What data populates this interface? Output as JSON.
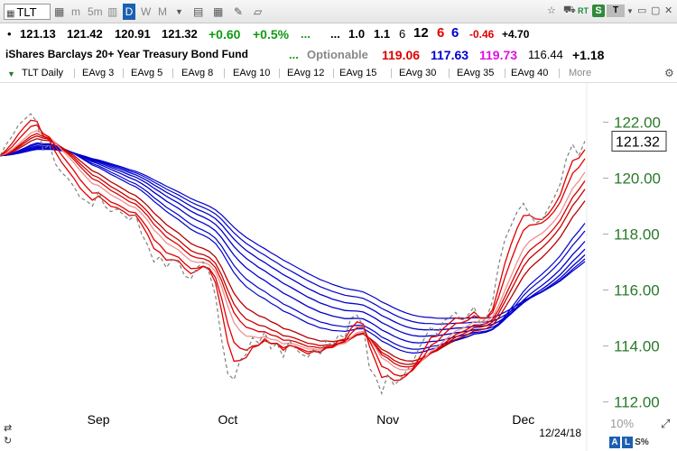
{
  "toolbar": {
    "symbol": "TLT",
    "buttons": [
      "m",
      "5m",
      "D",
      "W",
      "M"
    ],
    "active_button": "D",
    "rt_label": "RT",
    "s_label": "S",
    "t_label": "T"
  },
  "quote": {
    "open": "121.13",
    "high": "121.42",
    "low": "120.91",
    "close": "121.32",
    "change": "+0.60",
    "change_pct": "+0.5%",
    "dots1": "...",
    "dots2": "...",
    "v1": "1.0",
    "v2": "1.1",
    "v3": "6",
    "v4": "12",
    "v5": "6",
    "v6": "6",
    "v7": "-0.46",
    "v8": "+4.70"
  },
  "info": {
    "name": "iShares Barclays 20+ Year Treasury Bond Fund",
    "dots": "...",
    "optionable": "Optionable",
    "p1": "119.06",
    "p2": "117.63",
    "p3": "119.73",
    "p4": "116.44",
    "p5": "+1.18"
  },
  "legend": {
    "items": [
      {
        "label": "TLT Daily",
        "color": "#2a7a2a"
      },
      {
        "label": "EAvg 3",
        "color": "#e00000"
      },
      {
        "label": "EAvg 5",
        "color": "#e00000"
      },
      {
        "label": "EAvg 8",
        "color": "#f08080"
      },
      {
        "label": "EAvg 10",
        "color": "#d00000"
      },
      {
        "label": "EAvg 12",
        "color": "#c00000"
      },
      {
        "label": "EAvg 15",
        "color": "#b00000"
      },
      {
        "label": "EAvg 30",
        "color": "#0000cc"
      },
      {
        "label": "EAvg 35",
        "color": "#0000cc"
      },
      {
        "label": "EAvg 40",
        "color": "#0000cc"
      }
    ],
    "more": "More"
  },
  "chart_data": {
    "type": "line",
    "ylim": [
      111.6,
      123.4
    ],
    "yticks": [
      "122.00",
      "120.00",
      "118.00",
      "116.00",
      "114.00",
      "112.00"
    ],
    "ytick_values": [
      122,
      120,
      118,
      116,
      114,
      112
    ],
    "last_price": "121.32",
    "last_price_value": 121.32,
    "x_month_labels": [
      "Sep",
      "Oct",
      "Nov",
      "Dec"
    ],
    "x_month_index": [
      16,
      37,
      63,
      85
    ],
    "date_label": "12/24/18",
    "zoom_label": "10%",
    "price": [
      120.8,
      121.2,
      121.5,
      121.9,
      122.1,
      122.3,
      122.0,
      121.0,
      121.2,
      120.5,
      120.2,
      120.0,
      119.7,
      119.3,
      119.2,
      119.0,
      119.5,
      119.0,
      118.8,
      118.9,
      118.7,
      118.5,
      118.7,
      118.0,
      117.6,
      117.0,
      117.2,
      116.8,
      117.1,
      117.0,
      116.5,
      116.4,
      116.8,
      117.0,
      116.6,
      115.8,
      114.2,
      113.0,
      112.8,
      113.5,
      113.7,
      114.3,
      114.1,
      114.5,
      113.9,
      114.1,
      113.6,
      114.2,
      113.9,
      113.7,
      113.6,
      113.9,
      113.7,
      114.2,
      114.0,
      114.4,
      114.3,
      115.0,
      115.1,
      114.7,
      113.2,
      112.9,
      112.3,
      113.0,
      112.6,
      112.8,
      113.1,
      113.4,
      113.9,
      114.3,
      114.7,
      114.4,
      114.9,
      115.0,
      115.2,
      114.9,
      115.1,
      115.4,
      114.8,
      115.0,
      115.6,
      116.9,
      117.8,
      118.3,
      118.8,
      119.1,
      118.7,
      118.4,
      118.5,
      118.9,
      119.3,
      119.8,
      120.7,
      121.2,
      120.8,
      121.32
    ],
    "ema_periods": [
      3,
      5,
      8,
      10,
      12,
      15,
      30,
      35,
      40
    ],
    "ema_colors": [
      "#e00000",
      "#e00000",
      "#f09090",
      "#d80000",
      "#c80000",
      "#b80000",
      "#0000cc",
      "#0000cc",
      "#0000cc"
    ],
    "extra_blue_periods": [
      22,
      25,
      45,
      50
    ],
    "price_color": "#808080"
  }
}
